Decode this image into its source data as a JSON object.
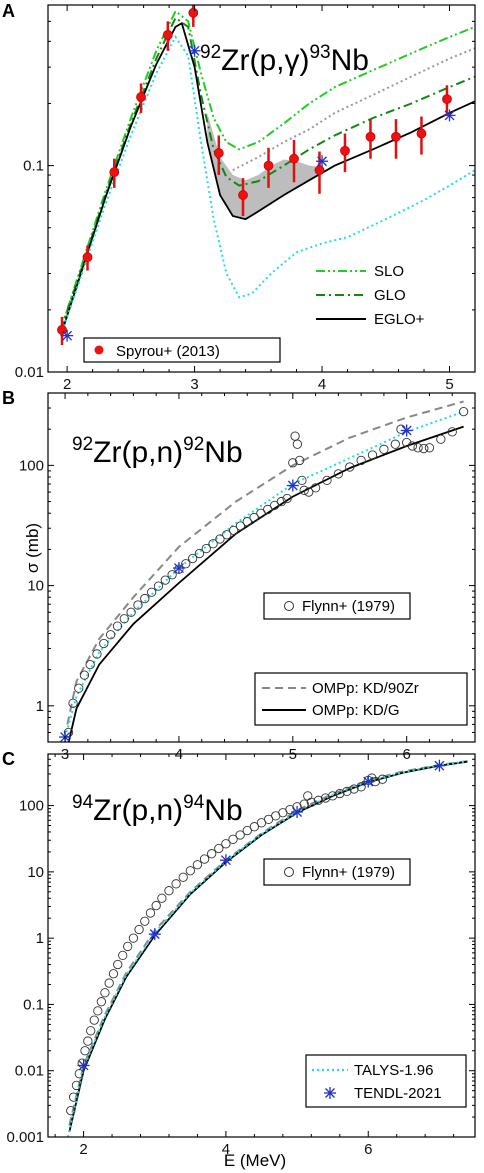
{
  "chart_data": [
    {
      "panel_label": "A",
      "type": "line",
      "title": {
        "pre": "92",
        "mid1": "Zr(p,γ)",
        "sup2": "93",
        "mid2": "Nb"
      },
      "xlabel": "",
      "ylabel": "",
      "xlim": [
        1.85,
        5.2
      ],
      "ylim": [
        0.01,
        0.6
      ],
      "yscale": "log",
      "x_ticks": [
        2,
        3,
        4,
        5
      ],
      "y_ticks": [
        {
          "v": 0.01,
          "t": "0.01"
        },
        {
          "v": 0.1,
          "t": "0.1"
        }
      ],
      "legend_lines": [
        "SLO",
        "GLO",
        "EGLO+"
      ],
      "legend_exp": "Spyrou+ (2013)",
      "series": [
        {
          "name": "SLO",
          "style": "dashdotdot",
          "color": "#22cc22",
          "x": [
            1.95,
            2.1,
            2.3,
            2.5,
            2.7,
            2.85,
            2.95,
            3.05,
            3.15,
            3.25,
            3.35,
            3.5,
            3.7,
            3.9,
            4.1,
            4.4,
            4.7,
            5.0,
            5.2
          ],
          "y": [
            0.016,
            0.031,
            0.075,
            0.17,
            0.36,
            0.56,
            0.5,
            0.28,
            0.17,
            0.13,
            0.12,
            0.13,
            0.16,
            0.2,
            0.24,
            0.29,
            0.35,
            0.42,
            0.47
          ]
        },
        {
          "name": "GLO",
          "style": "dashdot",
          "color": "#118811",
          "x": [
            1.95,
            2.1,
            2.3,
            2.5,
            2.7,
            2.85,
            2.95,
            3.05,
            3.15,
            3.25,
            3.35,
            3.5,
            3.7,
            3.9,
            4.1,
            4.4,
            4.7,
            5.0,
            5.2
          ],
          "y": [
            0.016,
            0.03,
            0.072,
            0.16,
            0.33,
            0.52,
            0.47,
            0.22,
            0.12,
            0.088,
            0.08,
            0.084,
            0.1,
            0.12,
            0.14,
            0.17,
            0.2,
            0.24,
            0.27
          ]
        },
        {
          "name": "",
          "style": "dotted",
          "color": "#999999",
          "x": [
            3.3,
            3.5,
            3.7,
            3.9,
            4.1,
            4.4,
            4.7,
            5.0,
            5.2
          ],
          "y": [
            0.095,
            0.11,
            0.13,
            0.15,
            0.18,
            0.22,
            0.27,
            0.33,
            0.37
          ]
        },
        {
          "name": "EGLO+",
          "style": "solid",
          "color": "#000000",
          "x": [
            1.95,
            2.1,
            2.3,
            2.5,
            2.7,
            2.85,
            2.9,
            3.0,
            3.1,
            3.2,
            3.3,
            3.4,
            3.5,
            3.7,
            3.9,
            4.1,
            4.4,
            4.7,
            5.0,
            5.2
          ],
          "y": [
            0.015,
            0.029,
            0.07,
            0.155,
            0.31,
            0.47,
            0.49,
            0.3,
            0.13,
            0.072,
            0.057,
            0.055,
            0.06,
            0.072,
            0.085,
            0.1,
            0.12,
            0.145,
            0.18,
            0.205
          ]
        },
        {
          "name": "",
          "style": "dotted",
          "color": "#22dddd",
          "x": [
            1.95,
            2.1,
            2.3,
            2.5,
            2.7,
            2.85,
            2.95,
            3.05,
            3.15,
            3.25,
            3.35,
            3.45,
            3.6,
            3.8,
            4.0,
            4.2,
            4.5,
            4.8,
            5.0,
            5.2
          ],
          "y": [
            0.015,
            0.028,
            0.065,
            0.14,
            0.28,
            0.42,
            0.34,
            0.13,
            0.055,
            0.03,
            0.023,
            0.024,
            0.03,
            0.038,
            0.042,
            0.045,
            0.055,
            0.068,
            0.08,
            0.095
          ]
        }
      ],
      "band": {
        "x": [
          3.1,
          3.2,
          3.3,
          3.4,
          3.5,
          3.6,
          3.7,
          3.8,
          3.9,
          4.0
        ],
        "upper": [
          0.18,
          0.11,
          0.09,
          0.085,
          0.09,
          0.1,
          0.107,
          0.105,
          0.1,
          0.098
        ],
        "lower": [
          0.13,
          0.072,
          0.057,
          0.055,
          0.06,
          0.066,
          0.072,
          0.078,
          0.085,
          0.092
        ]
      },
      "exp_points": {
        "x": [
          1.96,
          2.16,
          2.37,
          2.58,
          2.79,
          2.99,
          3.19,
          3.38,
          3.58,
          3.78,
          3.98,
          4.18,
          4.38,
          4.58,
          4.78,
          4.98
        ],
        "y": [
          0.016,
          0.036,
          0.093,
          0.215,
          0.43,
          0.55,
          0.115,
          0.072,
          0.1,
          0.108,
          0.095,
          0.118,
          0.138,
          0.138,
          0.143,
          0.21
        ],
        "err": [
          0.0025,
          0.005,
          0.015,
          0.035,
          0.07,
          0.08,
          0.025,
          0.015,
          0.022,
          0.025,
          0.022,
          0.025,
          0.03,
          0.03,
          0.03,
          0.035
        ]
      },
      "tendl_points": {
        "x": [
          2.0,
          3.0,
          4.0,
          5.0
        ],
        "y": [
          0.015,
          0.36,
          0.105,
          0.175
        ]
      }
    },
    {
      "panel_label": "B",
      "type": "line",
      "title": {
        "pre": "92",
        "mid1": "Zr(p,n)",
        "sup2": "92",
        "mid2": "Nb"
      },
      "xlabel": "",
      "ylabel": "σ (mb)",
      "xlim": [
        2.85,
        6.6
      ],
      "ylim": [
        0.5,
        400
      ],
      "yscale": "log",
      "x_ticks": [
        3,
        4,
        5,
        6
      ],
      "y_ticks": [
        {
          "v": 1,
          "t": "1"
        },
        {
          "v": 10,
          "t": "10"
        },
        {
          "v": 100,
          "t": "100"
        }
      ],
      "legend_exp": "Flynn+ (1979)",
      "legend_lines": [
        "OMPp: KD/90Zr",
        "OMPp: KD/G"
      ],
      "series": [
        {
          "name": "OMPp: KD/90Zr",
          "style": "dashed",
          "color": "#888888",
          "x": [
            3.02,
            3.1,
            3.3,
            3.6,
            4.0,
            4.5,
            5.0,
            5.5,
            6.0,
            6.5
          ],
          "y": [
            0.7,
            1.6,
            3.6,
            8.0,
            21,
            50,
            100,
            170,
            250,
            340
          ]
        },
        {
          "name": "OMPp: KD/G",
          "style": "solid",
          "color": "#000000",
          "x": [
            3.02,
            3.1,
            3.3,
            3.6,
            4.0,
            4.5,
            5.0,
            5.5,
            6.0,
            6.5
          ],
          "y": [
            0.45,
            0.95,
            2.2,
            4.8,
            10.5,
            27,
            55,
            95,
            145,
            210
          ]
        },
        {
          "name": "",
          "style": "dotted",
          "color": "#22dddd",
          "x": [
            3.0,
            3.1,
            3.3,
            3.6,
            4.0,
            4.5,
            5.0,
            5.5,
            6.0,
            6.5
          ],
          "y": [
            0.55,
            1.2,
            2.8,
            6.0,
            14,
            33,
            70,
            115,
            190,
            280
          ]
        }
      ],
      "exp_points": {
        "x": [
          3.03,
          3.07,
          3.12,
          3.17,
          3.22,
          3.28,
          3.34,
          3.4,
          3.46,
          3.52,
          3.58,
          3.64,
          3.7,
          3.76,
          3.82,
          3.88,
          3.94,
          4.0,
          4.06,
          4.12,
          4.18,
          4.24,
          4.3,
          4.36,
          4.42,
          4.48,
          4.54,
          4.6,
          4.66,
          4.72,
          4.78,
          4.84,
          4.9,
          4.95,
          5.0,
          5.02,
          5.04,
          5.06,
          5.08,
          5.1,
          5.14,
          5.2,
          5.3,
          5.4,
          5.5,
          5.6,
          5.7,
          5.8,
          5.9,
          5.95,
          6.0,
          6.05,
          6.1,
          6.15,
          6.2,
          6.3,
          6.4,
          6.5
        ],
        "y": [
          0.6,
          1.05,
          1.4,
          1.8,
          2.2,
          2.7,
          3.3,
          3.9,
          4.6,
          5.3,
          6.0,
          6.9,
          7.8,
          8.8,
          9.9,
          11.1,
          12.3,
          13.7,
          15.2,
          16.8,
          18.5,
          20.3,
          22.3,
          24.4,
          26.5,
          28.8,
          31.3,
          34.0,
          36.8,
          40.0,
          43.0,
          46.5,
          50.0,
          53.0,
          105,
          175,
          150,
          110,
          75,
          62,
          60,
          65,
          75,
          85,
          97,
          110,
          122,
          136,
          150,
          200,
          155,
          145,
          140,
          138,
          140,
          165,
          190,
          280
        ]
      },
      "tendl_points": {
        "x": [
          3.0,
          4.0,
          5.0,
          6.0
        ],
        "y": [
          0.55,
          14,
          68,
          195
        ]
      }
    },
    {
      "panel_label": "C",
      "type": "line",
      "title": {
        "pre": "94",
        "mid1": "Zr(p,n)",
        "sup2": "94",
        "mid2": "Nb"
      },
      "xlabel": "E (MeV)",
      "ylabel": "",
      "xlim": [
        1.5,
        7.5
      ],
      "ylim": [
        0.001,
        600
      ],
      "yscale": "log",
      "x_ticks": [
        2,
        4,
        6
      ],
      "y_ticks": [
        {
          "v": 0.001,
          "t": "0.001"
        },
        {
          "v": 0.01,
          "t": "0.01"
        },
        {
          "v": 0.1,
          "t": "0.1"
        },
        {
          "v": 1,
          "t": "1"
        },
        {
          "v": 10,
          "t": "10"
        },
        {
          "v": 100,
          "t": "100"
        }
      ],
      "legend_exp": "Flynn+ (1979)",
      "legend_lines": [
        "TALYS-1.96",
        "TENDL-2021"
      ],
      "series": [
        {
          "name": "",
          "style": "dashed",
          "color": "#888888",
          "x": [
            1.8,
            2.0,
            2.3,
            2.6,
            3.0,
            3.5,
            4.0,
            4.5,
            5.0,
            5.5,
            6.0,
            6.5,
            7.0,
            7.4
          ],
          "y": [
            0.0015,
            0.012,
            0.07,
            0.3,
            1.3,
            5.0,
            15,
            38,
            85,
            150,
            240,
            330,
            410,
            470
          ]
        },
        {
          "name": "",
          "style": "solid",
          "color": "#000000",
          "x": [
            1.8,
            2.0,
            2.3,
            2.6,
            3.0,
            3.5,
            4.0,
            4.5,
            5.0,
            5.5,
            6.0,
            6.5,
            7.0,
            7.4
          ],
          "y": [
            0.0012,
            0.01,
            0.06,
            0.26,
            1.1,
            4.6,
            14,
            36,
            78,
            140,
            225,
            315,
            400,
            460
          ]
        },
        {
          "name": "TALYS-1.96",
          "style": "dotted",
          "color": "#22dddd",
          "x": [
            1.78,
            2.0,
            2.3,
            2.6,
            3.0,
            3.5,
            4.0,
            4.5,
            5.0,
            5.5,
            6.0,
            6.5,
            7.0,
            7.4
          ],
          "y": [
            0.001,
            0.011,
            0.065,
            0.28,
            1.2,
            4.8,
            14.5,
            37,
            80,
            145,
            230,
            320,
            405,
            465
          ]
        }
      ],
      "exp_points": {
        "x": [
          1.82,
          1.86,
          1.9,
          1.94,
          1.98,
          2.02,
          2.06,
          2.1,
          2.15,
          2.2,
          2.25,
          2.3,
          2.36,
          2.42,
          2.48,
          2.55,
          2.62,
          2.7,
          2.78,
          2.86,
          2.94,
          3.02,
          3.1,
          3.2,
          3.3,
          3.4,
          3.5,
          3.6,
          3.7,
          3.8,
          3.9,
          4.0,
          4.1,
          4.2,
          4.3,
          4.4,
          4.5,
          4.6,
          4.7,
          4.8,
          4.9,
          5.0,
          5.1,
          5.15,
          5.2,
          5.3,
          5.4,
          5.5,
          5.6,
          5.7,
          5.8,
          5.9,
          6.0,
          6.05,
          6.1,
          6.2
        ],
        "y": [
          0.0025,
          0.004,
          0.006,
          0.009,
          0.013,
          0.02,
          0.028,
          0.04,
          0.058,
          0.08,
          0.11,
          0.15,
          0.21,
          0.29,
          0.4,
          0.55,
          0.75,
          1.0,
          1.35,
          1.8,
          2.4,
          3.1,
          4.0,
          5.2,
          6.6,
          8.3,
          10.4,
          12.8,
          15.6,
          18.8,
          22.5,
          26.5,
          31,
          36,
          42,
          48,
          55,
          62,
          70,
          78,
          87,
          96,
          105,
          140,
          112,
          120,
          130,
          140,
          152,
          164,
          178,
          192,
          240,
          260,
          230,
          250
        ]
      },
      "tendl_points": {
        "x": [
          2.0,
          3.0,
          4.0,
          5.0,
          6.0,
          7.0
        ],
        "y": [
          0.012,
          1.15,
          15,
          80,
          230,
          400
        ]
      }
    }
  ]
}
